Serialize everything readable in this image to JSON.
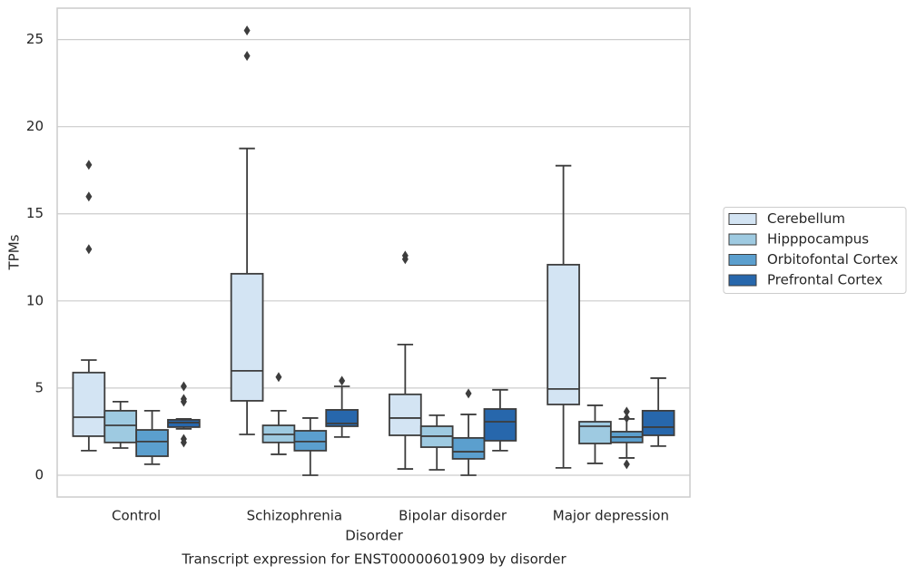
{
  "chart_data": {
    "type": "box",
    "title": "Transcript expression for ENST00000601909 by disorder",
    "xlabel": "Disorder",
    "ylabel": "TPMs",
    "categories": [
      "Control",
      "Schizophrenia",
      "Bipolar disorder",
      "Major depression"
    ],
    "ylim": [
      -1.25,
      26.8
    ],
    "yticks": [
      0,
      5,
      10,
      15,
      20,
      25
    ],
    "grid": true,
    "legend": "right",
    "series": [
      {
        "name": "Cerebellum",
        "color": "#d3e4f3",
        "whislo": [
          1.41,
          2.34,
          0.36,
          0.42
        ],
        "q1": [
          2.24,
          4.27,
          2.29,
          4.06
        ],
        "median": [
          3.33,
          5.99,
          3.28,
          4.95
        ],
        "q3": [
          5.89,
          11.56,
          4.64,
          12.08
        ],
        "whishi": [
          6.61,
          18.75,
          7.5,
          17.76
        ],
        "outliers": [
          [
            17.81,
            15.99,
            12.97
          ],
          [
            25.52,
            24.06
          ],
          [
            12.6,
            12.4
          ],
          []
        ]
      },
      {
        "name": "Hipppocampus",
        "color": "#9ecae1",
        "whislo": [
          1.56,
          1.2,
          0.31,
          0.68
        ],
        "q1": [
          1.88,
          1.88,
          1.61,
          1.82
        ],
        "median": [
          2.86,
          2.34,
          2.24,
          2.81
        ],
        "q3": [
          3.7,
          2.86,
          2.81,
          3.07
        ],
        "whishi": [
          4.22,
          3.7,
          3.44,
          4.01
        ],
        "outliers": [
          [],
          [
            5.63
          ],
          [],
          []
        ]
      },
      {
        "name": "Orbitofontal Cortex",
        "color": "#5b9fce",
        "whislo": [
          0.63,
          0.0,
          0.0,
          0.99
        ],
        "q1": [
          1.09,
          1.41,
          0.94,
          1.88
        ],
        "median": [
          1.93,
          1.93,
          1.35,
          2.19
        ],
        "q3": [
          2.6,
          2.55,
          2.14,
          2.5
        ],
        "whishi": [
          3.7,
          3.28,
          3.49,
          3.23
        ],
        "outliers": [
          [],
          [],
          [
            4.69
          ],
          [
            3.65,
            3.28,
            0.63
          ]
        ]
      },
      {
        "name": "Prefrontal Cortex",
        "color": "#2767ac",
        "whislo": [
          2.66,
          2.19,
          1.41,
          1.67
        ],
        "q1": [
          2.76,
          2.81,
          1.98,
          2.29
        ],
        "median": [
          3.02,
          2.97,
          3.07,
          2.76
        ],
        "q3": [
          3.18,
          3.75,
          3.8,
          3.7
        ],
        "whishi": [
          3.23,
          5.1,
          4.9,
          5.57
        ],
        "outliers": [
          [
            5.1,
            4.38,
            4.22,
            2.08,
            1.88
          ],
          [
            5.42
          ],
          [],
          []
        ]
      }
    ]
  }
}
